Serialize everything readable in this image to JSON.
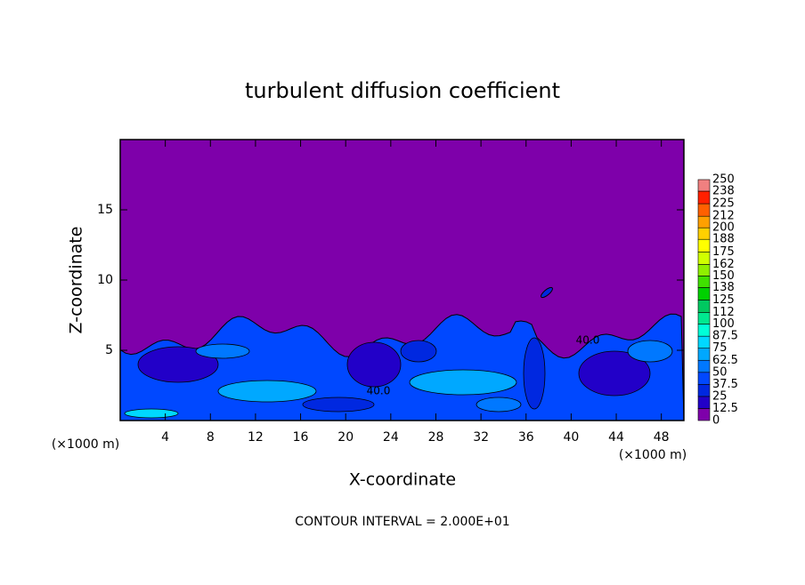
{
  "chart_data": {
    "type": "contour",
    "title": "turbulent diffusion coefficient",
    "xlabel": "X-coordinate",
    "ylabel": "Z-coordinate",
    "x_unit": "(×1000 m)",
    "y_unit": "(×1000 m)",
    "footnote": "CONTOUR INTERVAL = 2.000E+01",
    "xlim": [
      0,
      50
    ],
    "ylim": [
      0,
      20
    ],
    "xticks": [
      4,
      8,
      12,
      16,
      20,
      24,
      28,
      32,
      36,
      40,
      44,
      48
    ],
    "yticks": [
      5,
      10,
      15
    ],
    "background_color": "#7e00aa",
    "contour_labels": [
      "40.0",
      "40.0"
    ],
    "colorbar": {
      "ticks": [
        0,
        12.5,
        25,
        37.5,
        50,
        62.5,
        75,
        87.5,
        100,
        112,
        125,
        138,
        150,
        162,
        175,
        188,
        200,
        212,
        225,
        238,
        250
      ],
      "colors": [
        "#7e00aa",
        "#2200c8",
        "#0028e0",
        "#0048ff",
        "#0078ff",
        "#00a8ff",
        "#00d8ff",
        "#00ffd8",
        "#00e890",
        "#00c860",
        "#00d000",
        "#40e000",
        "#90f000",
        "#d0ff00",
        "#ffff00",
        "#ffd000",
        "#ffa000",
        "#ff6000",
        "#ff2000",
        "#f08080"
      ]
    }
  }
}
